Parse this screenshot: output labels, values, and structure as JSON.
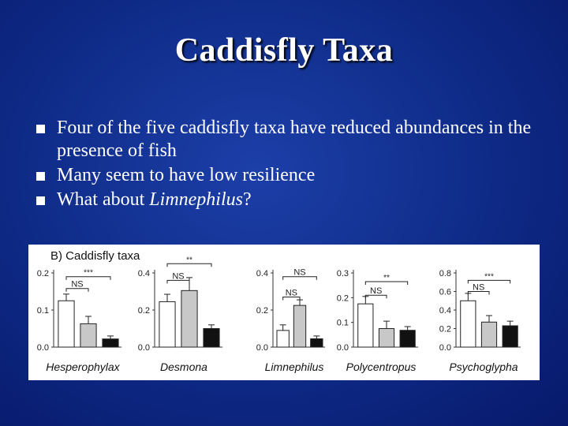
{
  "slide": {
    "title": "Caddisfly Taxa",
    "bullets": [
      {
        "parts": [
          {
            "text": "Four of the five caddisfly taxa have reduced abundances in the presence of fish",
            "italic": false
          }
        ]
      },
      {
        "parts": [
          {
            "text": "Many seem to have low resilience",
            "italic": false
          }
        ]
      },
      {
        "parts": [
          {
            "text": "What about ",
            "italic": false
          },
          {
            "text": "Limnephilus",
            "italic": true
          },
          {
            "text": "?",
            "italic": false
          }
        ]
      }
    ]
  },
  "figure": {
    "panel_label": "B) Caddisfly taxa"
  },
  "chart_data": [
    {
      "type": "bar",
      "title": "Hesperophylax",
      "ylim": [
        0,
        0.2
      ],
      "yticks": [
        "0.0",
        "0.1",
        "0.2"
      ],
      "values": [
        0.125,
        0.063,
        0.022
      ],
      "errors": [
        0.018,
        0.02,
        0.008
      ],
      "fills": [
        "#ffffff",
        "#c8c8c8",
        "#111111"
      ],
      "brackets": [
        {
          "from": 0,
          "to": 2,
          "label": "***",
          "level": 0.19
        },
        {
          "from": 0,
          "to": 1,
          "label": "NS",
          "level": 0.158
        }
      ]
    },
    {
      "type": "bar",
      "title": "Desmona",
      "ylim": [
        0,
        0.4
      ],
      "yticks": [
        "0.0",
        "0.2",
        "0.4"
      ],
      "values": [
        0.245,
        0.305,
        0.1
      ],
      "errors": [
        0.04,
        0.07,
        0.02
      ],
      "fills": [
        "#ffffff",
        "#c8c8c8",
        "#111111"
      ],
      "brackets": [
        {
          "from": 0,
          "to": 2,
          "label": "**",
          "level": 0.45
        },
        {
          "from": 0,
          "to": 1,
          "label": "NS",
          "level": 0.36
        }
      ]
    },
    {
      "type": "bar",
      "title": "Limnephilus",
      "ylim": [
        0,
        0.4
      ],
      "yticks": [
        "0.0",
        "0.2",
        "0.4"
      ],
      "values": [
        0.09,
        0.225,
        0.045
      ],
      "errors": [
        0.03,
        0.03,
        0.015
      ],
      "fills": [
        "#ffffff",
        "#c8c8c8",
        "#111111"
      ],
      "brackets": [
        {
          "from": 0,
          "to": 2,
          "label": "NS",
          "level": 0.38
        },
        {
          "from": 0,
          "to": 1,
          "label": "NS",
          "level": 0.27
        }
      ]
    },
    {
      "type": "bar",
      "title": "Polycentropus",
      "ylim": [
        0,
        0.3
      ],
      "yticks": [
        "0.0",
        "0.1",
        "0.2",
        "0.3"
      ],
      "values": [
        0.175,
        0.075,
        0.068
      ],
      "errors": [
        0.03,
        0.03,
        0.015
      ],
      "fills": [
        "#ffffff",
        "#c8c8c8",
        "#111111"
      ],
      "brackets": [
        {
          "from": 0,
          "to": 2,
          "label": "**",
          "level": 0.265
        },
        {
          "from": 0,
          "to": 1,
          "label": "NS",
          "level": 0.21
        }
      ]
    },
    {
      "type": "bar",
      "title": "Psychoglypha",
      "ylim": [
        0,
        0.8
      ],
      "yticks": [
        "0.0",
        "0.2",
        "0.4",
        "0.6",
        "0.8"
      ],
      "values": [
        0.5,
        0.27,
        0.23
      ],
      "errors": [
        0.08,
        0.07,
        0.05
      ],
      "fills": [
        "#ffffff",
        "#c8c8c8",
        "#111111"
      ],
      "brackets": [
        {
          "from": 0,
          "to": 2,
          "label": "***",
          "level": 0.72
        },
        {
          "from": 0,
          "to": 1,
          "label": "NS",
          "level": 0.6
        }
      ]
    }
  ]
}
